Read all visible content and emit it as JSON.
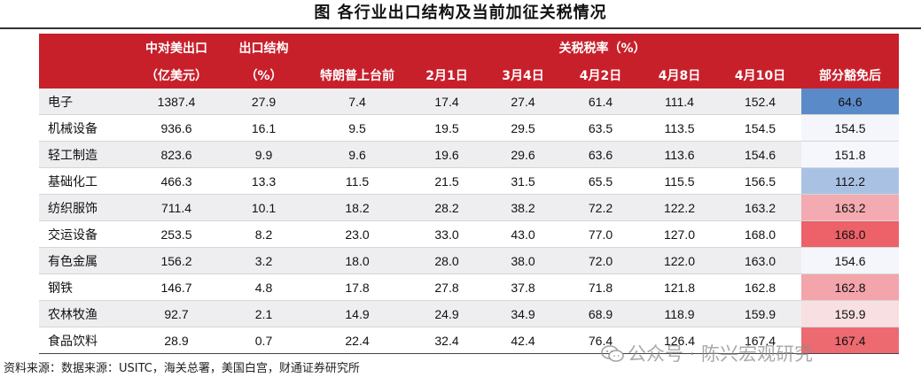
{
  "title": "图    各行业出口结构及当前加征关税情况",
  "header": {
    "us_export_line1": "中对美出口",
    "us_export_line2": "（亿美元）",
    "structure_line1": "出口结构",
    "structure_line2": "（%）",
    "tariff_group": "关税税率（%）",
    "tariff_cols": [
      "特朗普上台前",
      "2月1日",
      "3月4日",
      "4月2日",
      "4月8日",
      "4月10日",
      "部分豁免后"
    ]
  },
  "rows": [
    {
      "industry": "电子",
      "export": "1387.4",
      "share": "27.9",
      "t": [
        "7.4",
        "17.4",
        "27.4",
        "61.4",
        "111.4",
        "152.4",
        "64.6"
      ]
    },
    {
      "industry": "机械设备",
      "export": "936.6",
      "share": "16.1",
      "t": [
        "9.5",
        "19.5",
        "29.5",
        "63.5",
        "113.5",
        "154.5",
        "154.5"
      ]
    },
    {
      "industry": "轻工制造",
      "export": "823.6",
      "share": "9.9",
      "t": [
        "9.6",
        "19.6",
        "29.6",
        "63.6",
        "113.6",
        "154.6",
        "151.8"
      ]
    },
    {
      "industry": "基础化工",
      "export": "466.3",
      "share": "13.3",
      "t": [
        "11.5",
        "21.5",
        "31.5",
        "65.5",
        "115.5",
        "156.5",
        "112.2"
      ]
    },
    {
      "industry": "纺织服饰",
      "export": "711.4",
      "share": "10.1",
      "t": [
        "18.2",
        "28.2",
        "38.2",
        "72.2",
        "122.2",
        "163.2",
        "163.2"
      ]
    },
    {
      "industry": "交运设备",
      "export": "253.5",
      "share": "8.2",
      "t": [
        "23.0",
        "33.0",
        "43.0",
        "77.0",
        "127.0",
        "168.0",
        "168.0"
      ]
    },
    {
      "industry": "有色金属",
      "export": "156.2",
      "share": "3.2",
      "t": [
        "18.0",
        "28.0",
        "38.0",
        "72.0",
        "122.0",
        "163.0",
        "154.6"
      ]
    },
    {
      "industry": "钢铁",
      "export": "146.7",
      "share": "4.8",
      "t": [
        "17.8",
        "27.8",
        "37.8",
        "71.8",
        "121.8",
        "162.8",
        "162.8"
      ]
    },
    {
      "industry": "农林牧渔",
      "export": "92.7",
      "share": "2.1",
      "t": [
        "14.9",
        "24.9",
        "34.9",
        "68.9",
        "118.9",
        "159.9",
        "159.9"
      ]
    },
    {
      "industry": "食品饮料",
      "export": "28.9",
      "share": "0.7",
      "t": [
        "22.4",
        "32.4",
        "42.4",
        "76.4",
        "126.4",
        "167.4",
        "167.4"
      ]
    }
  ],
  "exemption_colors": [
    "#5b8ac9",
    "#f4f6fb",
    "#f6f7fc",
    "#a9c2e4",
    "#f3aab0",
    "#ed6168",
    "#f4f6fb",
    "#f4a4ab",
    "#f8dfe1",
    "#ec6a70"
  ],
  "colors": {
    "header_bg": "#c8202b",
    "stripe": "#eeeef0"
  },
  "source": "资料来源：数据来源：USITC，海关总署，美国白宫，财通证券研究所",
  "watermark": "公众号 · 陈兴宏观研究",
  "watermark_icon": "wechat-icon"
}
